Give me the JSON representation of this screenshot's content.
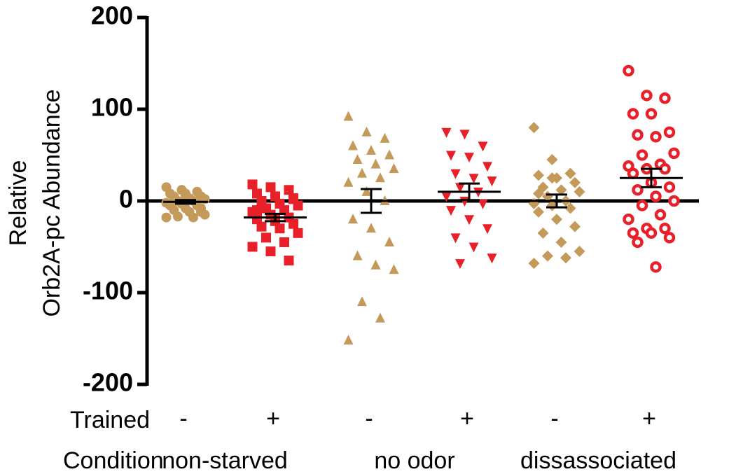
{
  "chart_data": {
    "type": "dot_plot",
    "ylabel": [
      "Relative",
      "Orb2A-pc Abundance"
    ],
    "ylim": [
      -200,
      200
    ],
    "yticks": [
      -200,
      -100,
      0,
      100,
      200
    ],
    "trained_label": "Trained",
    "trained": [
      "-",
      "+",
      "-",
      "+",
      "-",
      "+"
    ],
    "condition_label": "Condition",
    "conditions": [
      "non-starved",
      "no odor",
      "dissassociated"
    ],
    "groups": [
      {
        "marker": "circle",
        "color": "#c49a5a",
        "values": [
          15,
          12,
          10,
          8,
          8,
          5,
          5,
          3,
          2,
          0,
          0,
          -2,
          -3,
          -5,
          -5,
          -8,
          -8,
          -10,
          -12,
          -15,
          -17,
          -18,
          -18,
          12,
          10,
          -3,
          6,
          -12
        ],
        "mean": -1,
        "error": 2
      },
      {
        "marker": "square",
        "color": "#e8202a",
        "values": [
          18,
          15,
          12,
          8,
          5,
          3,
          0,
          -3,
          -5,
          -8,
          -10,
          -12,
          -15,
          -18,
          -20,
          -22,
          -25,
          -28,
          -30,
          -35,
          -40,
          -45,
          -50,
          -55,
          -65,
          -10,
          -20,
          2
        ],
        "mean": -18,
        "error": 4
      },
      {
        "marker": "triangle-up",
        "color": "#c49a5a",
        "values": [
          92,
          75,
          68,
          60,
          55,
          50,
          45,
          40,
          35,
          30,
          25,
          20,
          10,
          0,
          -20,
          -30,
          -45,
          -60,
          -70,
          -75,
          -110,
          -128,
          -152
        ],
        "mean": 0,
        "error": 13
      },
      {
        "marker": "triangle-down",
        "color": "#e8202a",
        "values": [
          75,
          73,
          60,
          50,
          48,
          38,
          30,
          25,
          22,
          15,
          10,
          5,
          0,
          -3,
          -10,
          -20,
          -30,
          -40,
          -50,
          -62,
          -68
        ],
        "mean": 10,
        "error": 9
      },
      {
        "marker": "diamond",
        "color": "#c49a5a",
        "values": [
          80,
          45,
          30,
          28,
          25,
          20,
          15,
          12,
          10,
          5,
          0,
          -3,
          -5,
          -8,
          -12,
          -20,
          -28,
          -35,
          -45,
          -55,
          -60,
          -62,
          -68,
          25,
          30,
          8
        ],
        "mean": 0,
        "error": 7
      },
      {
        "marker": "ring",
        "color": "#e8202a",
        "values": [
          142,
          115,
          112,
          95,
          95,
          75,
          72,
          70,
          52,
          50,
          40,
          38,
          35,
          35,
          30,
          20,
          15,
          12,
          5,
          0,
          -5,
          -15,
          -20,
          -30,
          -30,
          -35,
          -35,
          -40,
          -45,
          -72
        ],
        "mean": 25,
        "error": 10
      }
    ]
  }
}
